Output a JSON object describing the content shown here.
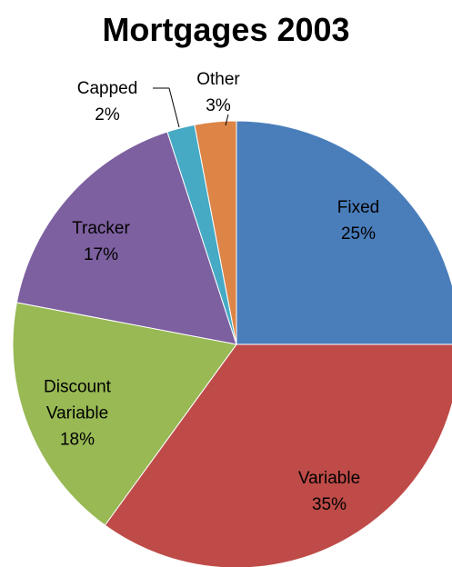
{
  "chart_data": {
    "type": "pie",
    "title": "Mortgages 2003",
    "categories": [
      "Fixed",
      "Variable",
      "Discount Variable",
      "Tracker",
      "Capped",
      "Other"
    ],
    "values": [
      25,
      35,
      18,
      17,
      2,
      3
    ],
    "value_labels": [
      "25%",
      "35%",
      "18%",
      "17%",
      "2%",
      "3%"
    ],
    "colors": [
      "#4a7ebb",
      "#be4b48",
      "#98b954",
      "#7d60a0",
      "#46aac5",
      "#dd8447"
    ]
  }
}
